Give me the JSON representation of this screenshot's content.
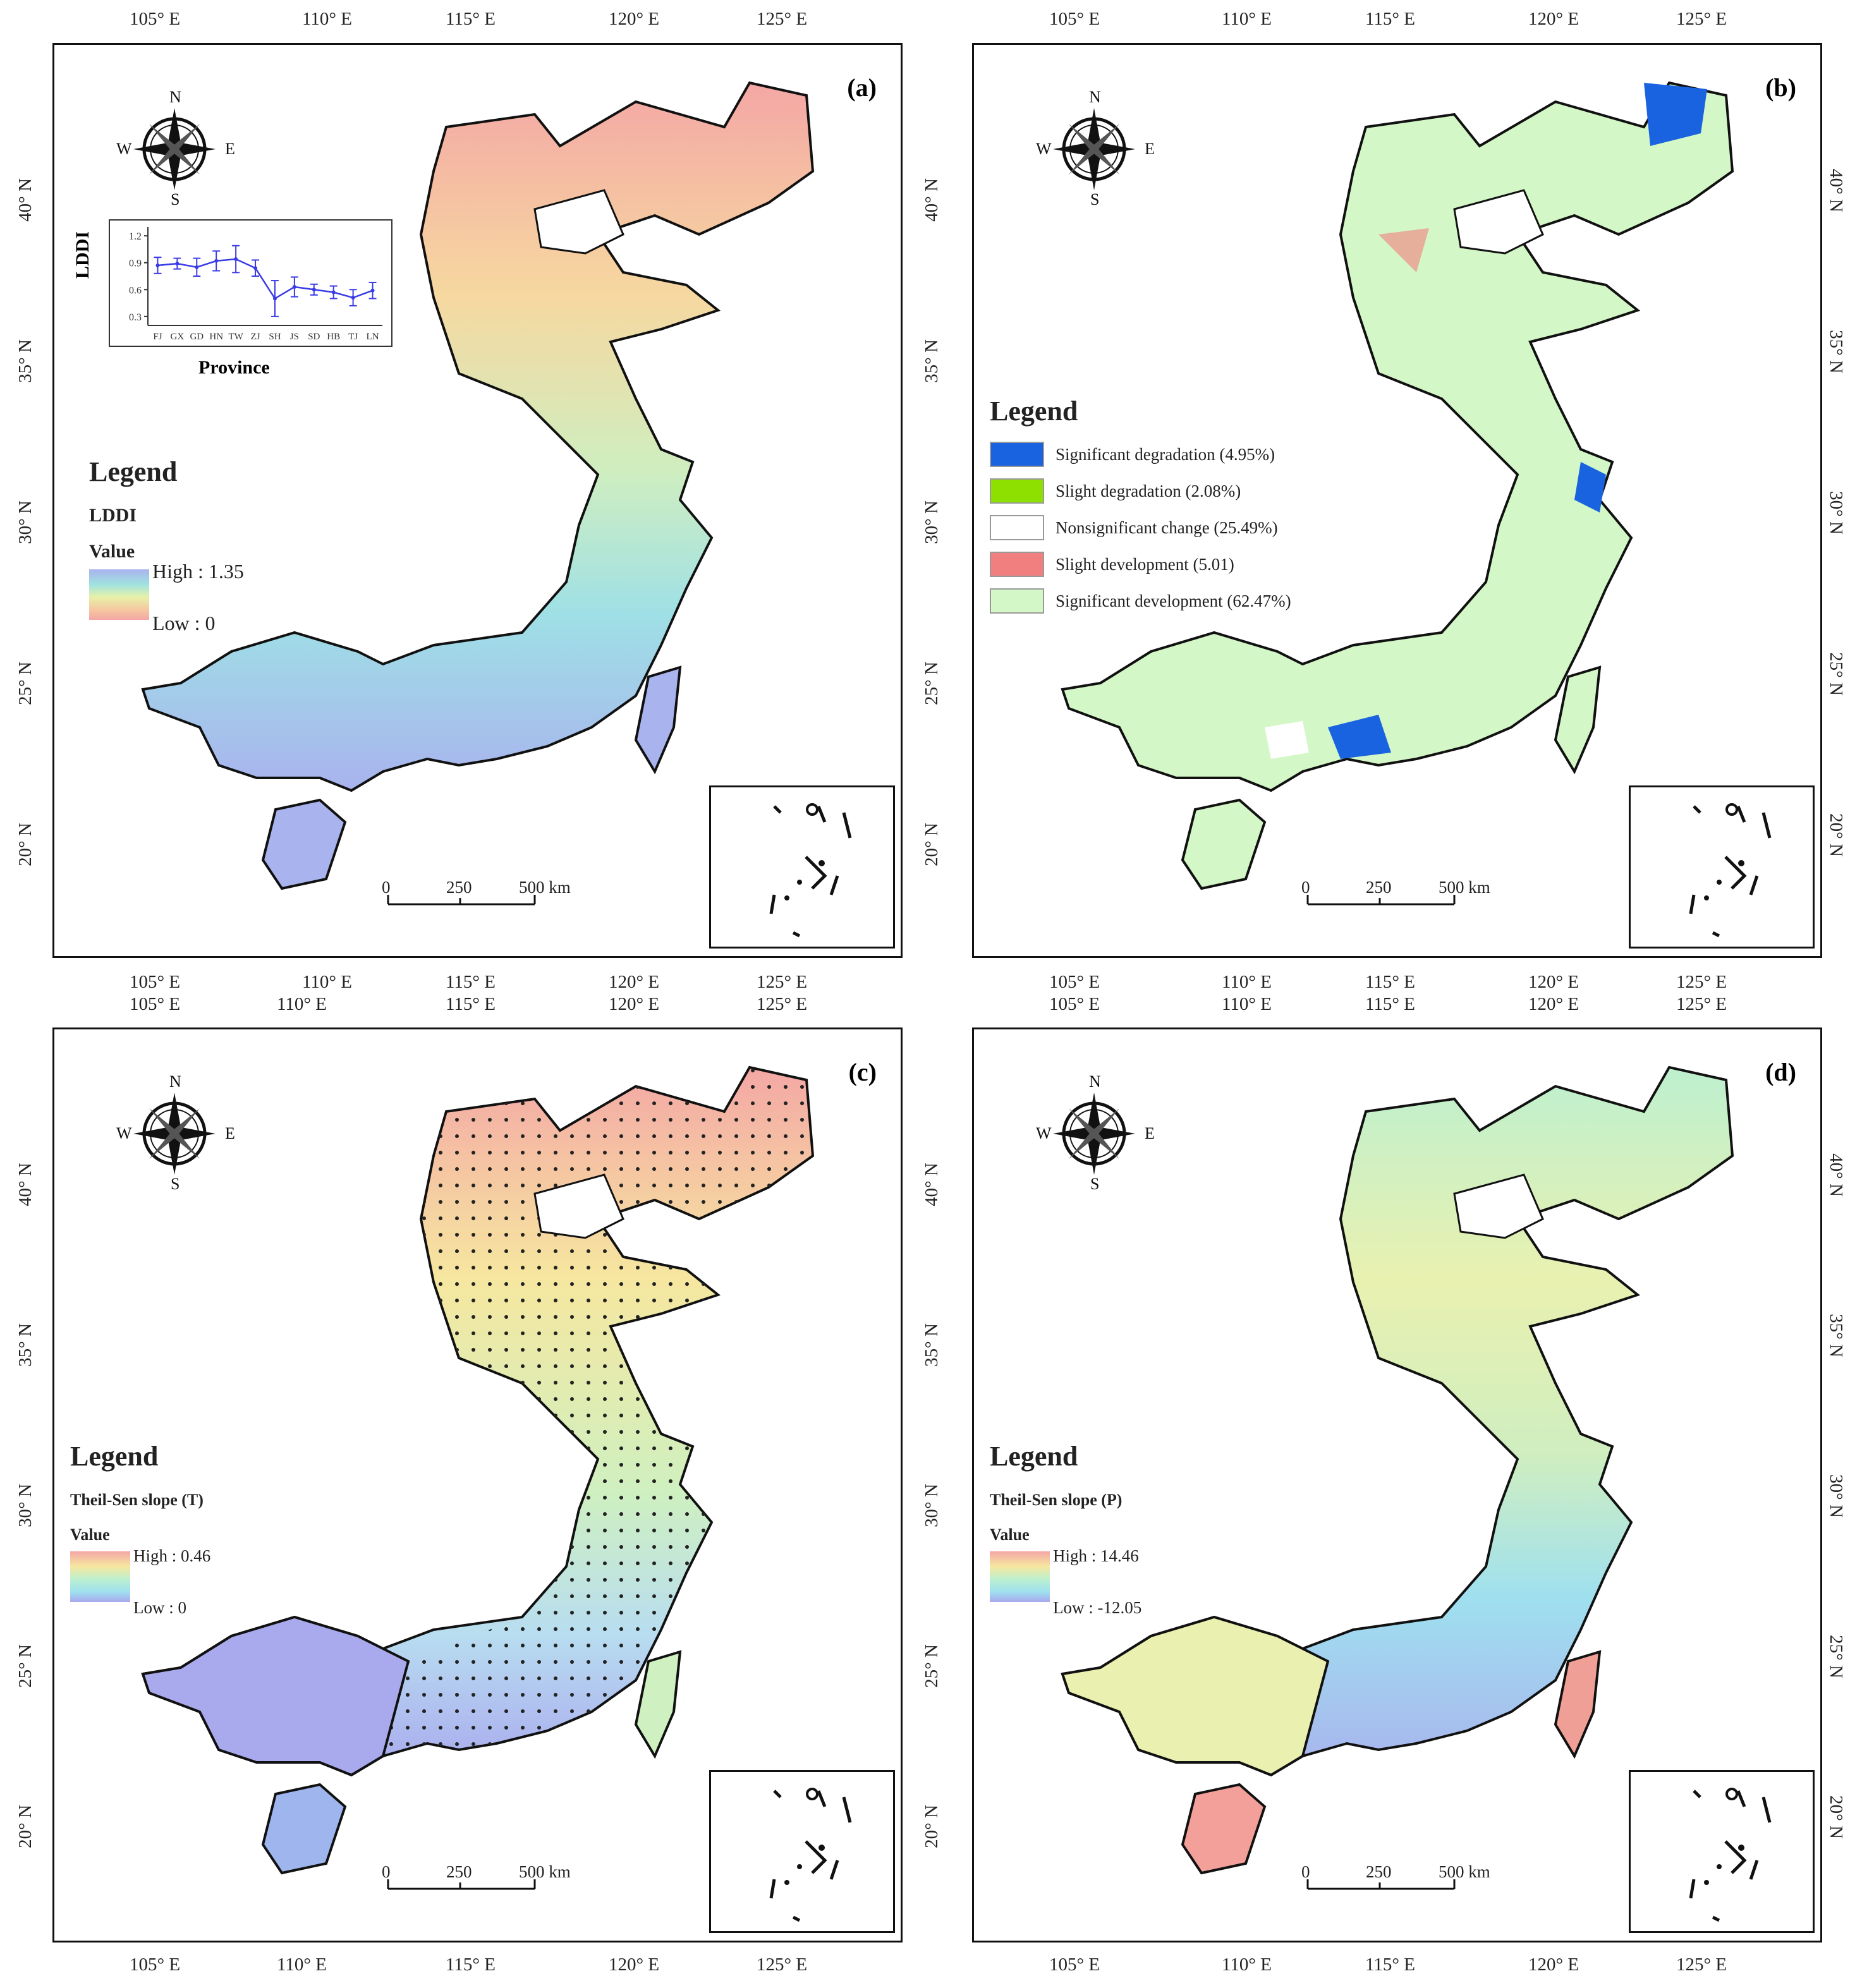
{
  "figure": {
    "lon_ticks": [
      "105° E",
      "110° E",
      "115° E",
      "120° E",
      "125° E"
    ],
    "lat_ticks": [
      "40° N",
      "35° N",
      "30° N",
      "25° N",
      "20° N"
    ]
  },
  "compass": {
    "n": "N",
    "s": "S",
    "e": "E",
    "w": "W"
  },
  "scale_bar": {
    "zero": "0",
    "mid": "250",
    "end": "500 km"
  },
  "panels": {
    "a": {
      "label": "(a)",
      "legend_title": "Legend",
      "legend_sub": "LDDI",
      "value_label": "Value",
      "high": "High : 1.35",
      "low": "Low : 0",
      "ramp": [
        "#a9b3ee",
        "#9fe3df",
        "#e7f1a8",
        "#f6c7a0",
        "#f4a7a5"
      ]
    },
    "b": {
      "label": "(b)",
      "legend_title": "Legend",
      "categories": [
        {
          "label": "Significant degradation (4.95%)",
          "color": "#1a63e0"
        },
        {
          "label": "Slight degradation (2.08%)",
          "color": "#8ee000"
        },
        {
          "label": "Nonsignificant change (25.49%)",
          "color": "#ffffff"
        },
        {
          "label": "Slight development (5.01)",
          "color": "#f27f7f"
        },
        {
          "label": "Significant development (62.47%)",
          "color": "#d3f7c6"
        }
      ]
    },
    "c": {
      "label": "(c)",
      "legend_title": "Legend",
      "legend_sub": "Theil-Sen slope (T)",
      "value_label": "Value",
      "high": "High : 0.46",
      "low": "Low : 0",
      "ramp": [
        "#f4a7a5",
        "#f6e7a0",
        "#bdf0cf",
        "#9fe0ef",
        "#a9a9ee"
      ]
    },
    "d": {
      "label": "(d)",
      "legend_title": "Legend",
      "legend_sub": "Theil-Sen slope (P)",
      "value_label": "Value",
      "high": "High : 14.46",
      "low": "Low : -12.05",
      "ramp": [
        "#f4a7a5",
        "#f6e7a0",
        "#bdf0cf",
        "#9fe0ef",
        "#a9a9ee"
      ]
    }
  },
  "chart_data": {
    "type": "line",
    "title": "",
    "xlabel": "Province",
    "ylabel": "LDDI",
    "categories": [
      "FJ",
      "GX",
      "GD",
      "HN",
      "TW",
      "ZJ",
      "SH",
      "JS",
      "SD",
      "HB",
      "TJ",
      "LN"
    ],
    "series": [
      {
        "values": [
          0.87,
          0.89,
          0.85,
          0.92,
          0.94,
          0.84,
          0.5,
          0.63,
          0.6,
          0.57,
          0.51,
          0.59
        ],
        "error": [
          0.09,
          0.06,
          0.1,
          0.11,
          0.15,
          0.09,
          0.2,
          0.11,
          0.06,
          0.07,
          0.09,
          0.09
        ],
        "color": "#3a3ae6"
      }
    ],
    "yticks": [
      "0.3",
      "0.6",
      "0.9",
      "1.2"
    ],
    "ylim": [
      0.2,
      1.3
    ],
    "grid": false
  }
}
